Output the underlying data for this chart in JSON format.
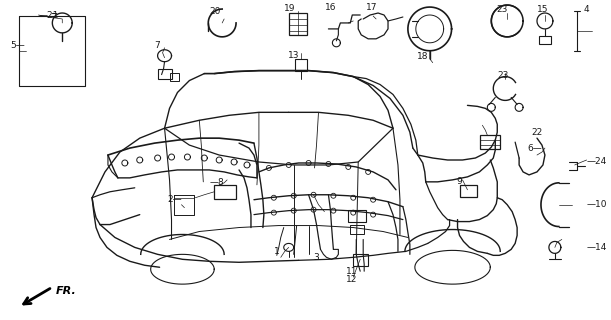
{
  "bg_color": "#ffffff",
  "line_color": "#1a1a1a",
  "fig_width": 6.11,
  "fig_height": 3.2,
  "dpi": 100,
  "fr_label": "FR."
}
